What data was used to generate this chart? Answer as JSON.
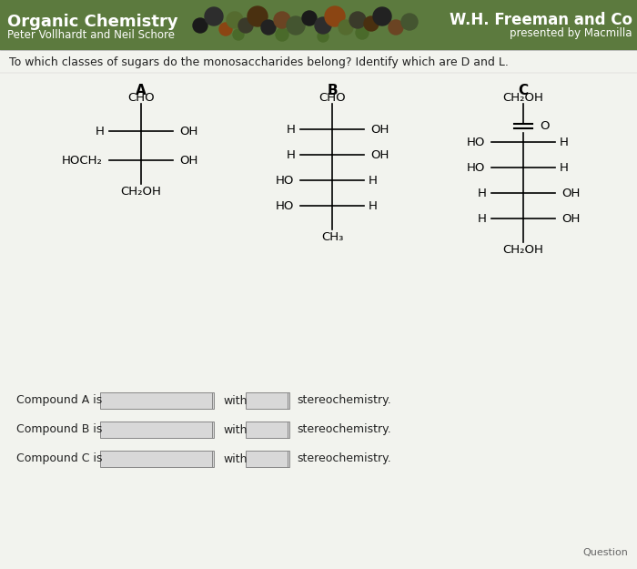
{
  "title": "Organic Chemistry",
  "subtitle": "Peter Vollhardt and Neil Schore",
  "publisher": "W.H. Freeman and Co",
  "publisher_sub": "presented by Macmilla",
  "question": "To which classes of sugars do the monosaccharides belong? Identify which are D and L.",
  "header_bg": "#5c7a3e",
  "header_text_color": "#ffffff",
  "body_bg": "#dce8dc",
  "white_bg": "#f5f5f0",
  "compound_labels": [
    "A",
    "B",
    "C"
  ],
  "footer_labels": [
    "Compound A is",
    "Compound B is",
    "Compound C is"
  ],
  "footer_suffix": "stereochemistry.",
  "question_label": "Question"
}
